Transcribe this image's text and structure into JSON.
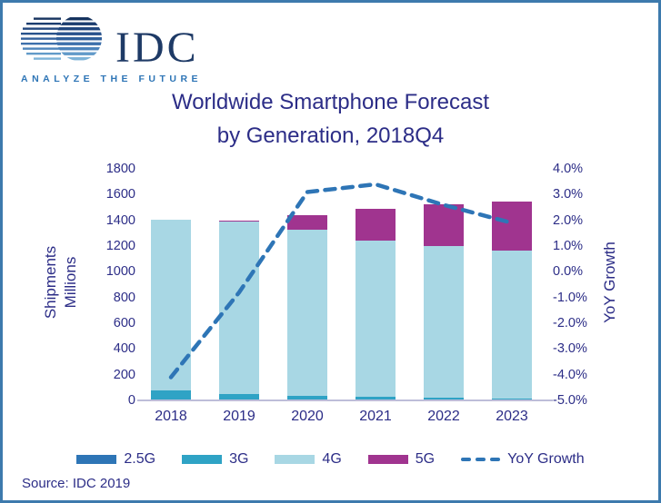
{
  "logo": {
    "name": "IDC",
    "tagline": "ANALYZE THE FUTURE"
  },
  "title": {
    "line1": "Worldwide Smartphone Forecast",
    "line2": "by Generation, 2018Q4"
  },
  "source": "Source: IDC 2019",
  "colors": {
    "navy_text": "#2c2d87",
    "border_blue": "#3d7aad",
    "logo_navy": "#1e3a66",
    "tagline_blue": "#2e75b6",
    "baseline_gray": "#bdbdd9"
  },
  "chart_data": {
    "type": "bar",
    "subtype": "stacked-bars-with-yoy-line",
    "title": "Worldwide Smartphone Forecast by Generation, 2018Q4",
    "categories": [
      "2018",
      "2019",
      "2020",
      "2021",
      "2022",
      "2023"
    ],
    "series": [
      {
        "name": "2.5G",
        "color": "#2e75b6",
        "values": [
          3,
          1,
          0,
          0,
          0,
          0
        ]
      },
      {
        "name": "3G",
        "color": "#2fa3c5",
        "values": [
          75,
          46,
          34,
          25,
          20,
          15
        ]
      },
      {
        "name": "4G",
        "color": "#a8d7e4",
        "values": [
          1327,
          1342,
          1293,
          1219,
          1178,
          1148
        ]
      },
      {
        "name": "5G",
        "color": "#a0348f",
        "values": [
          0,
          7,
          111,
          243,
          330,
          382
        ]
      }
    ],
    "line_series": {
      "name": "YoY Growth",
      "color": "#2e75b6",
      "style": "dashed",
      "values": [
        -4.1,
        -0.8,
        3.1,
        3.4,
        2.6,
        1.9
      ]
    },
    "left_axis": {
      "label_lines": [
        "Shipments",
        "Millions"
      ],
      "min": 0,
      "max": 1800,
      "step": 200
    },
    "right_axis": {
      "label": "YoY Growth",
      "min": -5.0,
      "max": 4.0,
      "step": 1.0,
      "tick_suffix": "%"
    },
    "legend_position": "bottom",
    "grid": false
  }
}
